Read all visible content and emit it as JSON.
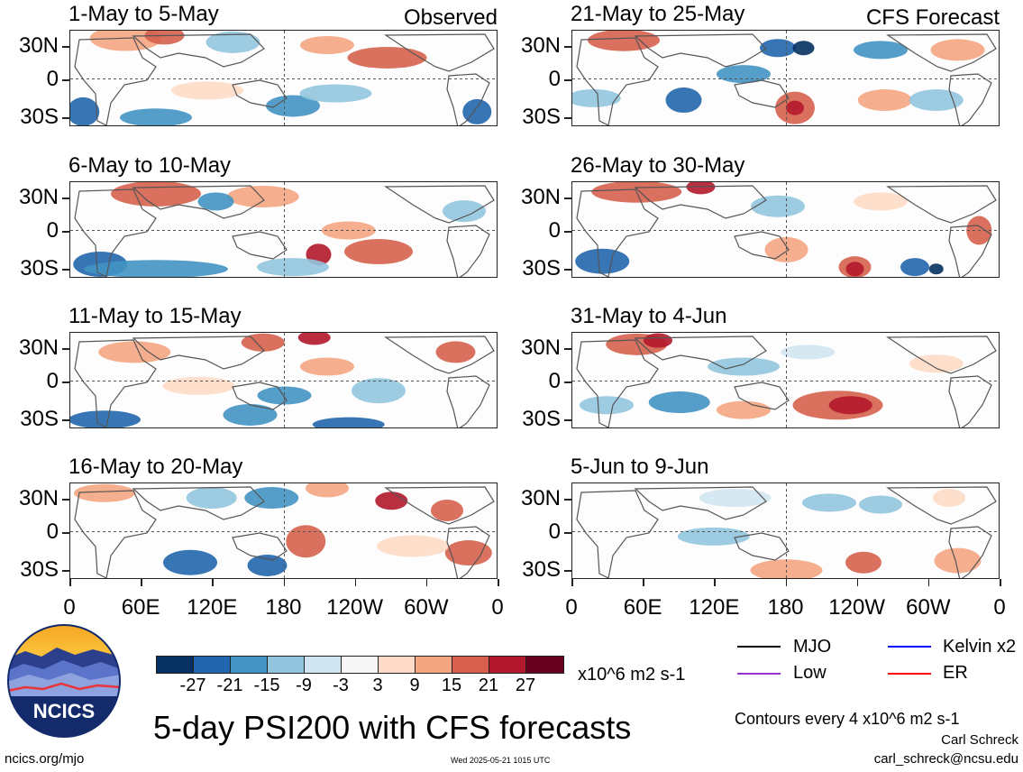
{
  "panels": [
    {
      "title": "1-May to 5-May",
      "label": "Observed",
      "col": 0,
      "row": 0
    },
    {
      "title": "6-May to 10-May",
      "label": "",
      "col": 0,
      "row": 1
    },
    {
      "title": "11-May to 15-May",
      "label": "",
      "col": 0,
      "row": 2
    },
    {
      "title": "16-May to 20-May",
      "label": "",
      "col": 0,
      "row": 3
    },
    {
      "title": "21-May to 25-May",
      "label": "CFS Forecast",
      "col": 1,
      "row": 0
    },
    {
      "title": "26-May to 30-May",
      "label": "",
      "col": 1,
      "row": 1
    },
    {
      "title": "31-May to 4-Jun",
      "label": "",
      "col": 1,
      "row": 2
    },
    {
      "title": "5-Jun to 9-Jun",
      "label": "",
      "col": 1,
      "row": 3
    }
  ],
  "y_axis": {
    "ticks": [
      "30N",
      "0",
      "30S"
    ]
  },
  "x_axis": {
    "ticks": [
      "0",
      "60E",
      "120E",
      "180",
      "120W",
      "60W",
      "0"
    ]
  },
  "colorbar": {
    "colors": [
      "#053061",
      "#2166ac",
      "#4393c3",
      "#92c5de",
      "#d1e5f0",
      "#f7f7f7",
      "#fddbc7",
      "#f4a582",
      "#d6604d",
      "#b2182b",
      "#67001f"
    ],
    "labels": [
      "-27",
      "-21",
      "-15",
      "-9",
      "-3",
      "3",
      "9",
      "15",
      "21",
      "27"
    ],
    "units": "x10^6 m2 s-1"
  },
  "title": "5-day PSI200 with CFS forecasts",
  "legend": {
    "items": [
      {
        "name": "MJO",
        "color": "#000000"
      },
      {
        "name": "Kelvin x2",
        "color": "#0000ff"
      },
      {
        "name": "Low",
        "color": "#9932cc"
      },
      {
        "name": "ER",
        "color": "#ff0000"
      }
    ],
    "contours": "Contours every 4 x10^6 m2 s-1"
  },
  "credit": {
    "author": "Carl Schreck",
    "email": "carl_schreck@ncsu.edu",
    "site": "ncics.org/mjo",
    "timestamp": "Wed 2025-05-21 1015 UTC"
  },
  "logo": {
    "text": "NCICS"
  }
}
